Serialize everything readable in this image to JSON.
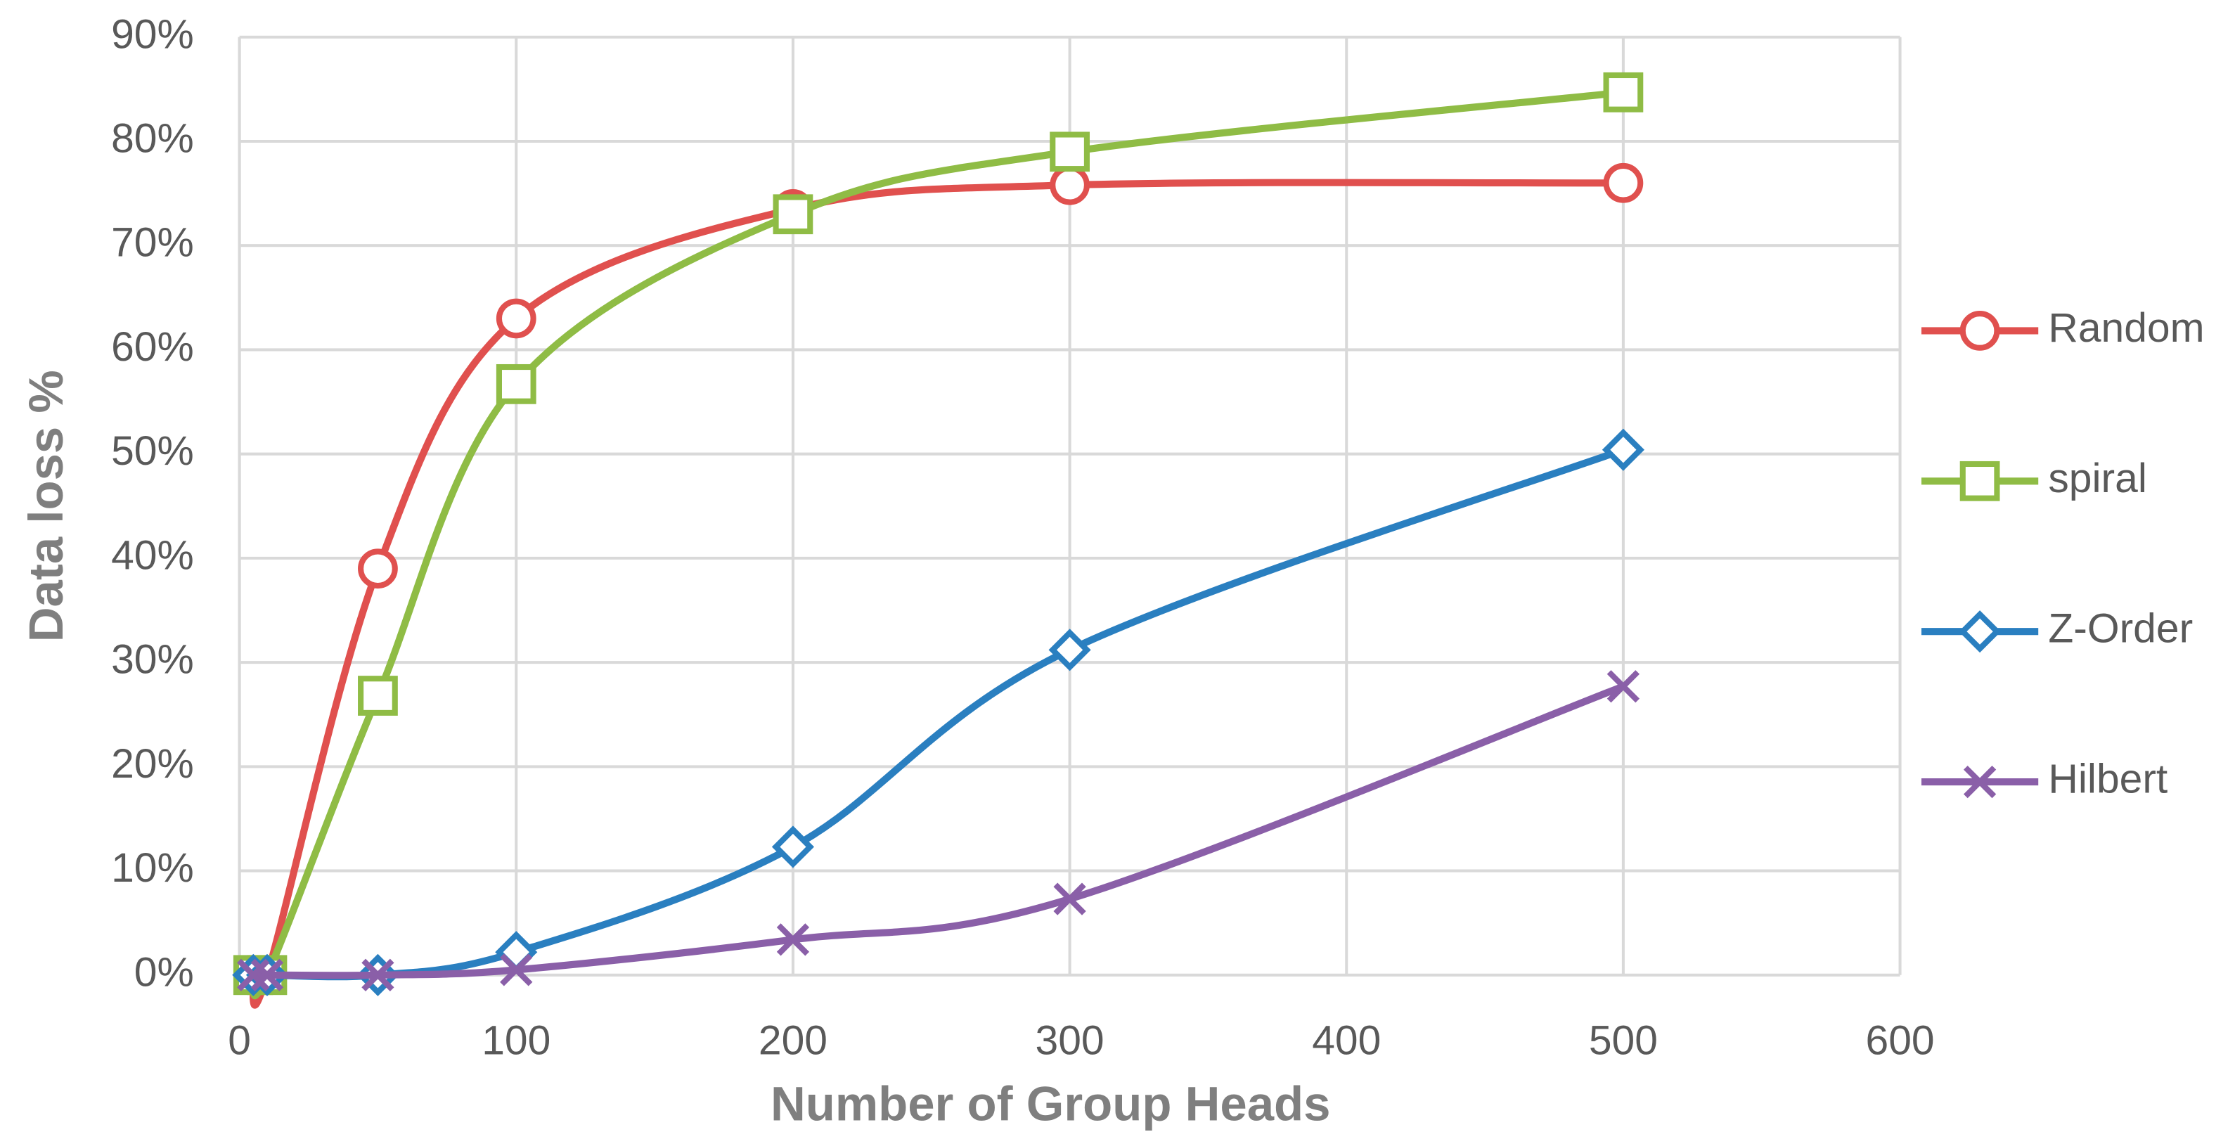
{
  "chart_data": {
    "type": "line",
    "x_label": "Number of Group Heads",
    "y_label": "Data loss %",
    "x": [
      5,
      10,
      50,
      100,
      200,
      300,
      500
    ],
    "series": [
      {
        "name": "Random",
        "color": "#e0504e",
        "marker": "circle",
        "values": [
          0,
          0,
          39,
          63,
          73.5,
          75.8,
          76
        ]
      },
      {
        "name": "spiral",
        "color": "#8fbc45",
        "marker": "square",
        "values": [
          0,
          0,
          26.8,
          56.7,
          73,
          79,
          84.7
        ]
      },
      {
        "name": "Z-Order",
        "color": "#2a7fc0",
        "marker": "diamond",
        "values": [
          0,
          0,
          0,
          2.2,
          12.3,
          31.2,
          50.4
        ]
      },
      {
        "name": "Hilbert",
        "color": "#8a5fa8",
        "marker": "x",
        "values": [
          0,
          0,
          0,
          0.5,
          3.4,
          7.3,
          27.7
        ]
      }
    ],
    "xlim": [
      0,
      600
    ],
    "xticks": [
      0,
      100,
      200,
      300,
      400,
      500,
      600
    ],
    "ylim": [
      0,
      90
    ],
    "yticks": [
      {
        "value": 0,
        "label": "0%"
      },
      {
        "value": 10,
        "label": "10%"
      },
      {
        "value": 20,
        "label": "20%"
      },
      {
        "value": 30,
        "label": "30%"
      },
      {
        "value": 40,
        "label": "40%"
      },
      {
        "value": 50,
        "label": "50%"
      },
      {
        "value": 60,
        "label": "60%"
      },
      {
        "value": 70,
        "label": "70%"
      },
      {
        "value": 80,
        "label": "80%"
      },
      {
        "value": 90,
        "label": "90%"
      }
    ],
    "grid": true,
    "smooth": true,
    "legend": "right"
  }
}
